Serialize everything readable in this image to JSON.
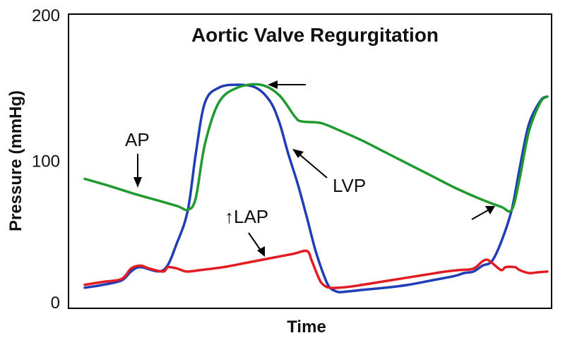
{
  "chart_data": {
    "type": "line",
    "title": "Aortic Valve Regurgitation",
    "xlabel": "Time",
    "ylabel": "Pressure (mmHg)",
    "ylim": [
      0,
      200
    ],
    "xlim": [
      0,
      100
    ],
    "yticks": [
      0,
      100,
      200
    ],
    "grid": false,
    "series": [
      {
        "name": "AP",
        "color": "#1f9a2e",
        "x": [
          0,
          5,
          10,
          15,
          20,
          22.3,
          24,
          26,
          29,
          33,
          38,
          42,
          45.5,
          47,
          51,
          55,
          60,
          65,
          70,
          75,
          80,
          85,
          90,
          92.3,
          94,
          96,
          98.5,
          100
        ],
        "y": [
          88,
          83.5,
          78.5,
          74,
          69.5,
          67,
          75,
          112,
          140,
          150,
          152,
          145,
          130,
          127,
          126,
          121,
          114,
          106,
          98,
          90,
          82,
          75,
          69,
          67,
          88,
          120,
          140,
          144
        ]
      },
      {
        "name": "LVP",
        "color": "#1f3eb5",
        "x": [
          0,
          4,
          8,
          10,
          12,
          17,
          20,
          22.3,
          24,
          26,
          29,
          33,
          37,
          40,
          42,
          44,
          46,
          48,
          50,
          52,
          53,
          54,
          55,
          57,
          60,
          65,
          70,
          75,
          80,
          82,
          84,
          86,
          88,
          90,
          92.3,
          94,
          96,
          98.5,
          100
        ],
        "y": [
          14,
          16,
          19,
          25,
          28,
          26,
          45,
          67,
          105,
          140,
          150,
          152,
          150,
          141,
          127,
          105,
          85,
          62,
          38,
          20,
          14,
          12,
          11,
          11.5,
          12.5,
          14,
          16,
          19,
          22,
          24,
          25,
          29,
          32,
          45,
          67,
          95,
          125,
          141,
          144
        ]
      },
      {
        "name": "LAP",
        "color": "#e31b23",
        "x": [
          0,
          4,
          8,
          10,
          12,
          14,
          17,
          18,
          20,
          22,
          25,
          30,
          35,
          40,
          45,
          48,
          49,
          50,
          51,
          52,
          53,
          55,
          58,
          62,
          66,
          70,
          74,
          78,
          81,
          84,
          86,
          87,
          88,
          90,
          91,
          93,
          94,
          96,
          98,
          100
        ],
        "y": [
          16,
          18,
          20,
          27,
          29,
          27,
          25,
          28,
          27,
          25,
          26,
          28,
          31,
          34,
          37,
          39,
          33,
          25,
          18,
          15,
          14,
          14,
          15,
          17,
          19,
          21,
          23,
          25,
          26,
          27,
          32,
          33,
          31,
          26,
          28,
          28,
          26,
          24,
          24.5,
          25
        ]
      }
    ],
    "annotations": [
      {
        "text": "AP"
      },
      {
        "text": "LVP"
      },
      {
        "text": "↑LAP"
      }
    ]
  }
}
